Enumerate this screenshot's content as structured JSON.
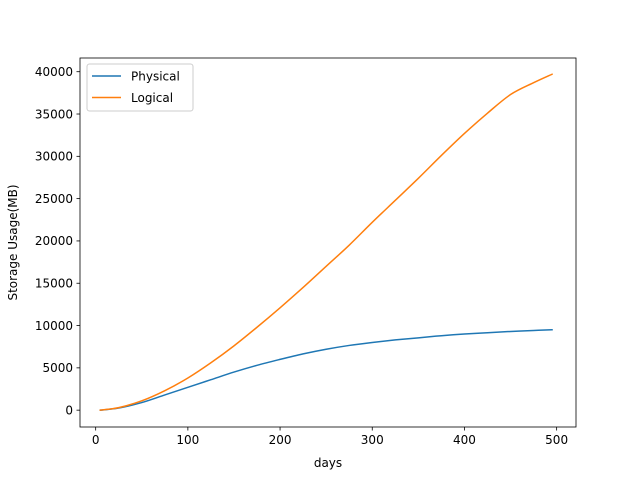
{
  "chart_data": {
    "type": "line",
    "xlabel": "days",
    "ylabel": "Storage Usage(MB)",
    "xlim": [
      -17,
      521
    ],
    "ylim": [
      -1990,
      41620
    ],
    "xticks": [
      0,
      100,
      200,
      300,
      400,
      500
    ],
    "yticks": [
      0,
      5000,
      10000,
      15000,
      20000,
      25000,
      30000,
      35000,
      40000
    ],
    "grid": false,
    "legend_position": "top-left",
    "series": [
      {
        "name": "Physical",
        "color": "#1f77b4",
        "x": [
          5,
          25,
          50,
          75,
          100,
          125,
          150,
          175,
          200,
          225,
          250,
          275,
          300,
          325,
          350,
          375,
          400,
          425,
          450,
          475,
          495
        ],
        "y": [
          0,
          250,
          900,
          1800,
          2700,
          3600,
          4500,
          5300,
          6000,
          6650,
          7200,
          7650,
          8000,
          8300,
          8550,
          8800,
          9000,
          9150,
          9300,
          9420,
          9500
        ]
      },
      {
        "name": "Logical",
        "color": "#ff7f0e",
        "x": [
          5,
          25,
          50,
          75,
          100,
          125,
          150,
          175,
          200,
          225,
          250,
          275,
          300,
          325,
          350,
          375,
          400,
          425,
          450,
          475,
          495
        ],
        "y": [
          0,
          300,
          1100,
          2300,
          3800,
          5600,
          7600,
          9800,
          12100,
          14500,
          17000,
          19500,
          22200,
          24800,
          27400,
          30100,
          32700,
          35100,
          37300,
          38700,
          39700
        ]
      }
    ]
  }
}
